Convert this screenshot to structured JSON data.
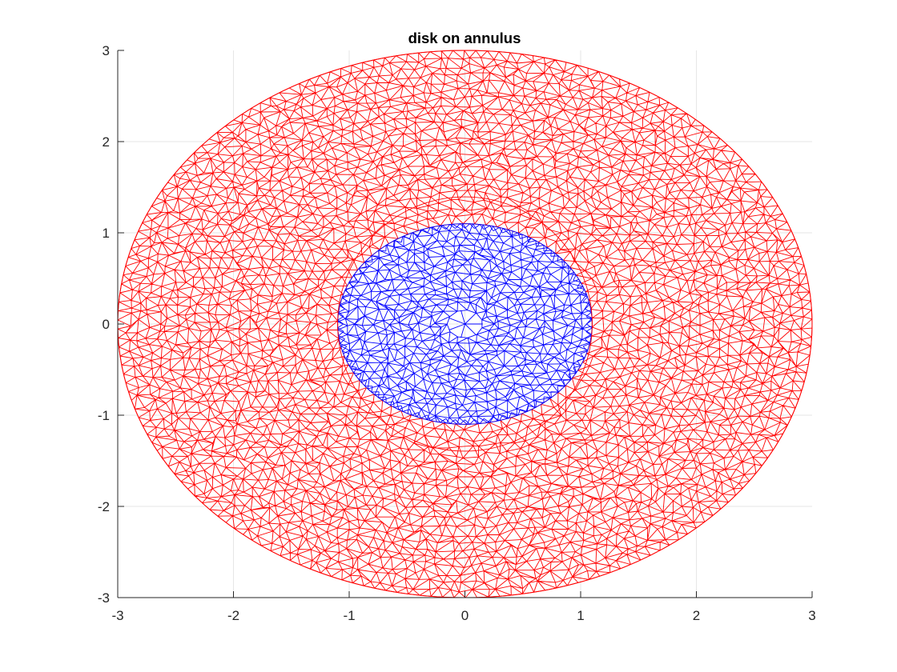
{
  "chart_data": {
    "type": "mesh-plot",
    "title": "disk on annulus",
    "xlabel": "",
    "ylabel": "",
    "xlim": [
      -3,
      3
    ],
    "ylim": [
      -3,
      3
    ],
    "xticks": [
      -3,
      -2,
      -1,
      0,
      1,
      2,
      3
    ],
    "yticks": [
      -3,
      -2,
      -1,
      0,
      1,
      2,
      3
    ],
    "xtick_labels": [
      "-3",
      "-2",
      "-1",
      "0",
      "1",
      "2",
      "3"
    ],
    "ytick_labels": [
      "-3",
      "-2",
      "-1",
      "0",
      "1",
      "2",
      "3"
    ],
    "grid": true,
    "series": [
      {
        "kind": "triangular-mesh",
        "shape": "annulus",
        "inner_radius": 1.1,
        "outer_radius": 3.0,
        "color": "#ff0000"
      },
      {
        "kind": "triangular-mesh",
        "shape": "disk",
        "radius": 1.1,
        "color": "#0000ff"
      }
    ],
    "colors": {
      "axis": "#262626",
      "grid": "#e6e6e6",
      "annulus": "#ff0000",
      "disk": "#0000ff"
    }
  }
}
